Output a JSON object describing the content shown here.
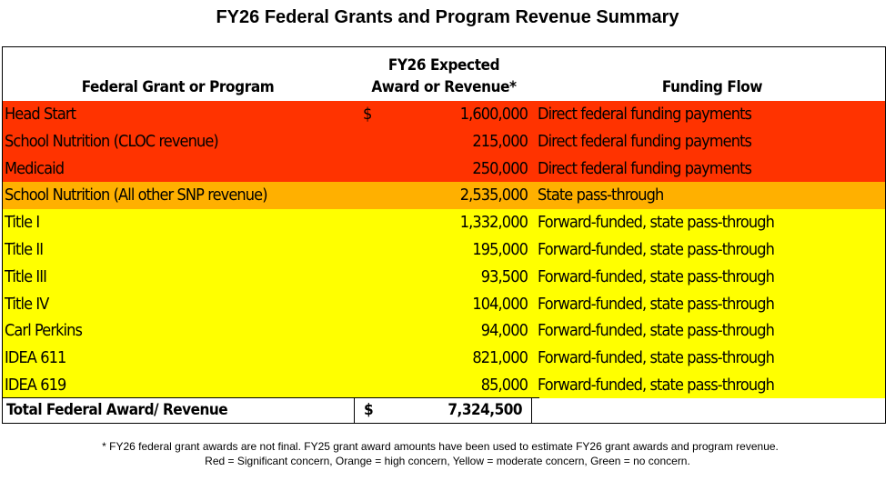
{
  "title": "FY26 Federal Grants and Program Revenue Summary",
  "table": {
    "headers": {
      "program": "Federal Grant or Program",
      "amount_line1": "FY26 Expected",
      "amount_line2": "Award or Revenue*",
      "flow": "Funding Flow"
    },
    "rows": [
      {
        "program": "Head Start",
        "dollar": "$",
        "amount": "1,600,000",
        "flow": "Direct federal funding payments",
        "concern": "red",
        "color": "#ff3300"
      },
      {
        "program": "School Nutrition (CLOC revenue)",
        "dollar": "",
        "amount": "215,000",
        "flow": "Direct federal funding payments",
        "concern": "red",
        "color": "#ff3300"
      },
      {
        "program": "Medicaid",
        "dollar": "",
        "amount": "250,000",
        "flow": "Direct federal funding payments",
        "concern": "red",
        "color": "#ff3300"
      },
      {
        "program": "School Nutrition (All other SNP revenue)",
        "dollar": "",
        "amount": "2,535,000",
        "flow": "State pass-through",
        "concern": "orange",
        "color": "#ffb000"
      },
      {
        "program": "Title I",
        "dollar": "",
        "amount": "1,332,000",
        "flow": "Forward-funded, state pass-through",
        "concern": "yellow",
        "color": "#ffff00"
      },
      {
        "program": "Title II",
        "dollar": "",
        "amount": "195,000",
        "flow": "Forward-funded, state pass-through",
        "concern": "yellow",
        "color": "#ffff00"
      },
      {
        "program": "Title III",
        "dollar": "",
        "amount": "93,500",
        "flow": "Forward-funded, state pass-through",
        "concern": "yellow",
        "color": "#ffff00"
      },
      {
        "program": "Title IV",
        "dollar": "",
        "amount": "104,000",
        "flow": "Forward-funded, state pass-through",
        "concern": "yellow",
        "color": "#ffff00"
      },
      {
        "program": "Carl Perkins",
        "dollar": "",
        "amount": "94,000",
        "flow": "Forward-funded, state pass-through",
        "concern": "yellow",
        "color": "#ffff00"
      },
      {
        "program": "IDEA 611",
        "dollar": "",
        "amount": "821,000",
        "flow": "Forward-funded, state pass-through",
        "concern": "yellow",
        "color": "#ffff00"
      },
      {
        "program": "IDEA 619",
        "dollar": "",
        "amount": "85,000",
        "flow": "Forward-funded, state pass-through",
        "concern": "yellow",
        "color": "#ffff00"
      }
    ],
    "total": {
      "label": "Total Federal Award/ Revenue",
      "dollar": "$",
      "amount": "7,324,500"
    }
  },
  "footnotes": {
    "line1": "* FY26 federal grant awards are not final.  FY25 grant award amounts have been used to estimate FY26 grant awards and program revenue.",
    "line2": "Red = Significant concern, Orange = high concern, Yellow = moderate concern, Green = no concern."
  },
  "colors": {
    "red": "#ff3300",
    "orange": "#ffb000",
    "yellow": "#ffff00"
  }
}
